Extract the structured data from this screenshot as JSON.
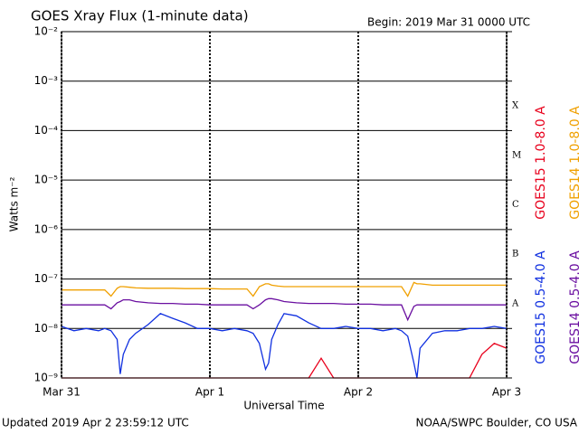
{
  "chart_data": {
    "type": "line",
    "title": "GOES Xray Flux (1-minute data)",
    "subtitle": "Begin:  2019 Mar 31 0000 UTC",
    "x_label": "Universal Time",
    "y_label": "Watts m⁻²",
    "footer_left": "Updated 2019 Apr  2 23:59:12 UTC",
    "footer_right": "NOAA/SWPC Boulder, CO USA",
    "class_labels": [
      "A",
      "B",
      "C",
      "M",
      "X"
    ],
    "log_y": true,
    "grid": true,
    "xlim": [
      0,
      72
    ],
    "xticks": [
      {
        "value": 0,
        "label": "Mar 31"
      },
      {
        "value": 24,
        "label": "Apr 1"
      },
      {
        "value": 48,
        "label": "Apr 2"
      },
      {
        "value": 72,
        "label": "Apr 3"
      }
    ],
    "ylim": [
      1e-09,
      0.01
    ],
    "yticks": [
      {
        "value": 1e-09,
        "label": "10⁻⁹"
      },
      {
        "value": 1e-08,
        "label": "10⁻⁸"
      },
      {
        "value": 1e-07,
        "label": "10⁻⁷"
      },
      {
        "value": 1e-06,
        "label": "10⁻⁶"
      },
      {
        "value": 1e-05,
        "label": "10⁻⁵"
      },
      {
        "value": 0.0001,
        "label": "10⁻⁴"
      },
      {
        "value": 0.001,
        "label": "10⁻³"
      },
      {
        "value": 0.01,
        "label": "10⁻²"
      }
    ],
    "x": [
      0,
      2,
      4,
      6,
      7,
      8,
      9,
      9.5,
      10,
      11,
      12,
      14,
      16,
      18,
      20,
      22,
      24,
      26,
      28,
      30,
      31,
      32,
      33,
      33.5,
      34,
      35,
      36,
      38,
      40,
      42,
      44,
      46,
      48,
      50,
      52,
      54,
      55,
      56,
      57,
      57.5,
      58,
      60,
      62,
      64,
      66,
      68,
      70,
      72
    ],
    "series": [
      {
        "name": "GOES15 1.0-8.0 A",
        "color": "#e8001c",
        "values": [
          1e-09,
          1e-09,
          1e-09,
          1e-09,
          1e-09,
          1e-09,
          1e-09,
          1e-09,
          1e-09,
          1e-09,
          1e-09,
          1e-09,
          1e-09,
          1e-09,
          1e-09,
          1e-09,
          1e-09,
          1e-09,
          1e-09,
          1e-09,
          1e-09,
          1e-09,
          1e-09,
          1e-09,
          1e-09,
          1e-09,
          1e-09,
          1e-09,
          1e-09,
          2.5e-09,
          1e-09,
          1e-09,
          1e-09,
          1e-09,
          1e-09,
          1e-09,
          1e-09,
          1e-09,
          1e-09,
          1e-09,
          1e-09,
          1e-09,
          1e-09,
          1e-09,
          1e-09,
          3e-09,
          5e-09,
          4e-09
        ]
      },
      {
        "name": "GOES14 1.0-8.0 A",
        "color": "#f0a000",
        "values": [
          6e-08,
          6e-08,
          6e-08,
          6e-08,
          6e-08,
          4.5e-08,
          6.5e-08,
          7e-08,
          7e-08,
          6.8e-08,
          6.6e-08,
          6.5e-08,
          6.5e-08,
          6.5e-08,
          6.4e-08,
          6.4e-08,
          6.4e-08,
          6.3e-08,
          6.3e-08,
          6.3e-08,
          4.5e-08,
          7e-08,
          8e-08,
          8e-08,
          7.5e-08,
          7.2e-08,
          7e-08,
          7e-08,
          7e-08,
          7e-08,
          7e-08,
          7e-08,
          7e-08,
          7e-08,
          7e-08,
          7e-08,
          7e-08,
          4.5e-08,
          8.5e-08,
          8e-08,
          8e-08,
          7.5e-08,
          7.5e-08,
          7.5e-08,
          7.5e-08,
          7.5e-08,
          7.5e-08,
          7.5e-08
        ]
      },
      {
        "name": "GOES15 0.5-4.0 A",
        "color": "#1030e0",
        "values": [
          1.1e-08,
          9e-09,
          1e-08,
          9e-09,
          1e-08,
          9e-09,
          6e-09,
          1.2e-09,
          3e-09,
          6e-09,
          8e-09,
          1.2e-08,
          2e-08,
          1.6e-08,
          1.3e-08,
          1e-08,
          1e-08,
          9e-09,
          1e-08,
          9e-09,
          8e-09,
          5e-09,
          1.5e-09,
          2e-09,
          6e-09,
          1.2e-08,
          2e-08,
          1.8e-08,
          1.3e-08,
          1e-08,
          1e-08,
          1.1e-08,
          1e-08,
          1e-08,
          9e-09,
          1e-08,
          9e-09,
          7e-09,
          2e-09,
          1e-09,
          4e-09,
          8e-09,
          9e-09,
          9e-09,
          1e-08,
          1e-08,
          1.1e-08,
          1e-08
        ]
      },
      {
        "name": "GOES14 0.5-4.0 A",
        "color": "#6a0fa0",
        "values": [
          3e-08,
          3e-08,
          3e-08,
          3e-08,
          3e-08,
          2.5e-08,
          3.3e-08,
          3.5e-08,
          3.8e-08,
          3.8e-08,
          3.5e-08,
          3.3e-08,
          3.2e-08,
          3.2e-08,
          3.1e-08,
          3.1e-08,
          3e-08,
          3e-08,
          3e-08,
          3e-08,
          2.5e-08,
          3e-08,
          3.8e-08,
          4e-08,
          4e-08,
          3.8e-08,
          3.5e-08,
          3.3e-08,
          3.2e-08,
          3.2e-08,
          3.2e-08,
          3.1e-08,
          3.1e-08,
          3.1e-08,
          3e-08,
          3e-08,
          3e-08,
          1.5e-08,
          2.8e-08,
          3e-08,
          3e-08,
          3e-08,
          3e-08,
          3e-08,
          3e-08,
          3e-08,
          3e-08,
          3e-08
        ]
      }
    ]
  }
}
